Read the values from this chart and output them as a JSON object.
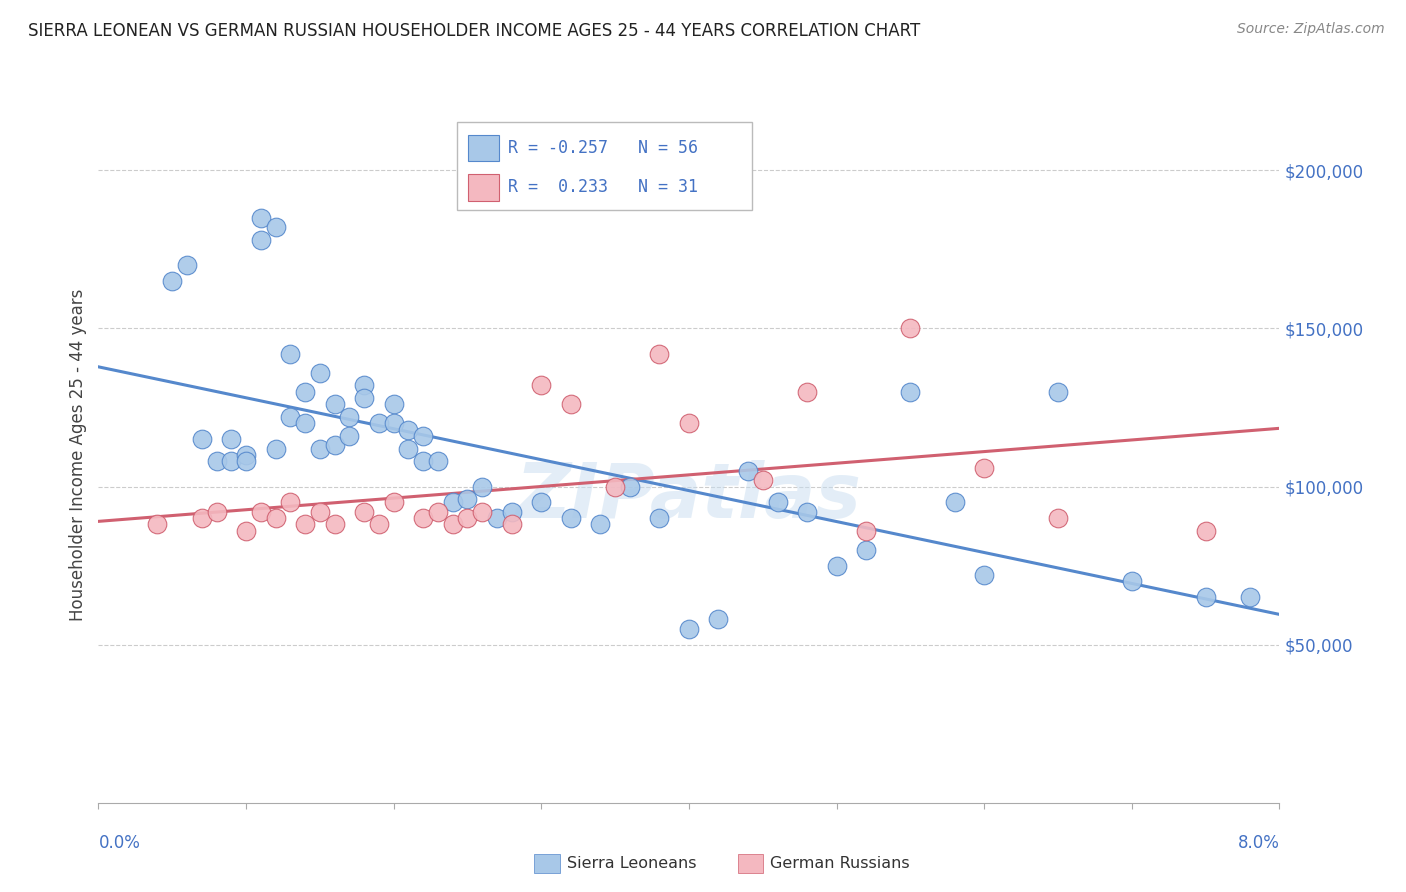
{
  "title": "SIERRA LEONEAN VS GERMAN RUSSIAN HOUSEHOLDER INCOME AGES 25 - 44 YEARS CORRELATION CHART",
  "source": "Source: ZipAtlas.com",
  "ylabel": "Householder Income Ages 25 - 44 years",
  "xmin": 0.0,
  "xmax": 0.08,
  "ymin": 0,
  "ymax": 220000,
  "yticks": [
    50000,
    100000,
    150000,
    200000
  ],
  "ytick_labels": [
    "$50,000",
    "$100,000",
    "$150,000",
    "$200,000"
  ],
  "blue_color": "#a8c8e8",
  "blue_line_color": "#5588cc",
  "pink_color": "#f4b8c0",
  "pink_line_color": "#d06070",
  "axis_label_color": "#4472c4",
  "title_color": "#222222",
  "background_color": "#ffffff",
  "grid_color": "#cccccc",
  "watermark": "ZIPatlas",
  "blue_scatter_x": [
    0.005,
    0.006,
    0.007,
    0.008,
    0.009,
    0.009,
    0.01,
    0.01,
    0.011,
    0.011,
    0.012,
    0.012,
    0.013,
    0.013,
    0.014,
    0.014,
    0.015,
    0.015,
    0.016,
    0.016,
    0.017,
    0.017,
    0.018,
    0.018,
    0.019,
    0.02,
    0.02,
    0.021,
    0.021,
    0.022,
    0.022,
    0.023,
    0.024,
    0.025,
    0.026,
    0.027,
    0.028,
    0.03,
    0.032,
    0.034,
    0.036,
    0.038,
    0.04,
    0.042,
    0.044,
    0.046,
    0.048,
    0.05,
    0.052,
    0.055,
    0.058,
    0.06,
    0.065,
    0.07,
    0.075,
    0.078
  ],
  "blue_scatter_y": [
    165000,
    170000,
    115000,
    108000,
    115000,
    108000,
    110000,
    108000,
    178000,
    185000,
    182000,
    112000,
    142000,
    122000,
    130000,
    120000,
    136000,
    112000,
    113000,
    126000,
    122000,
    116000,
    132000,
    128000,
    120000,
    126000,
    120000,
    118000,
    112000,
    116000,
    108000,
    108000,
    95000,
    96000,
    100000,
    90000,
    92000,
    95000,
    90000,
    88000,
    100000,
    90000,
    55000,
    58000,
    105000,
    95000,
    92000,
    75000,
    80000,
    130000,
    95000,
    72000,
    130000,
    70000,
    65000,
    65000
  ],
  "pink_scatter_x": [
    0.004,
    0.007,
    0.008,
    0.01,
    0.011,
    0.012,
    0.013,
    0.014,
    0.015,
    0.016,
    0.018,
    0.019,
    0.02,
    0.022,
    0.023,
    0.024,
    0.025,
    0.026,
    0.028,
    0.03,
    0.032,
    0.035,
    0.038,
    0.04,
    0.045,
    0.048,
    0.052,
    0.055,
    0.06,
    0.065,
    0.075
  ],
  "pink_scatter_y": [
    88000,
    90000,
    92000,
    86000,
    92000,
    90000,
    95000,
    88000,
    92000,
    88000,
    92000,
    88000,
    95000,
    90000,
    92000,
    88000,
    90000,
    92000,
    88000,
    132000,
    126000,
    100000,
    142000,
    120000,
    102000,
    130000,
    86000,
    150000,
    106000,
    90000,
    86000
  ]
}
